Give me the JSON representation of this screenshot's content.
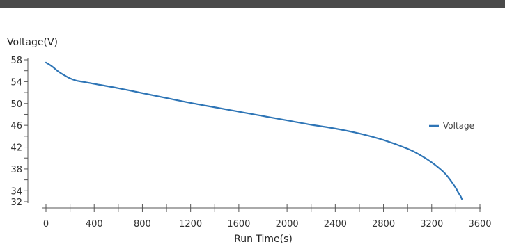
{
  "chart_data": {
    "type": "line",
    "title": "",
    "xlabel": "Run Time(s)",
    "ylabel": "Voltage(V)",
    "xlim": [
      0,
      3600
    ],
    "ylim": [
      32,
      58
    ],
    "xticks": [
      0,
      400,
      800,
      1200,
      1600,
      2000,
      2400,
      2800,
      3200,
      3600
    ],
    "yticks": [
      32,
      34,
      38,
      42,
      46,
      50,
      54,
      58
    ],
    "xtick_labels": [
      "0",
      "400",
      "800",
      "1200",
      "1600",
      "2000",
      "2400",
      "2800",
      "3200",
      "3600"
    ],
    "ytick_labels": [
      "32",
      "34",
      "38",
      "42",
      "46",
      "50",
      "54",
      "58"
    ],
    "grid": false,
    "legend_position": "right",
    "colors": {
      "voltage": "#2e75b6",
      "axis": "#555555",
      "top_bar": "#4a4a4a"
    },
    "series": [
      {
        "name": "Voltage",
        "x": [
          0,
          50,
          100,
          150,
          200,
          250,
          300,
          400,
          600,
          800,
          1000,
          1200,
          1400,
          1600,
          1800,
          2000,
          2200,
          2400,
          2600,
          2800,
          3000,
          3100,
          3200,
          3300,
          3350,
          3400,
          3420,
          3440,
          3450
        ],
        "y": [
          57.5,
          56.8,
          55.9,
          55.2,
          54.6,
          54.2,
          54.0,
          53.6,
          52.8,
          51.9,
          51.0,
          50.1,
          49.3,
          48.5,
          47.7,
          46.9,
          46.1,
          45.4,
          44.5,
          43.3,
          41.7,
          40.6,
          39.2,
          37.4,
          36.1,
          34.5,
          33.7,
          33.0,
          32.5
        ]
      }
    ]
  }
}
